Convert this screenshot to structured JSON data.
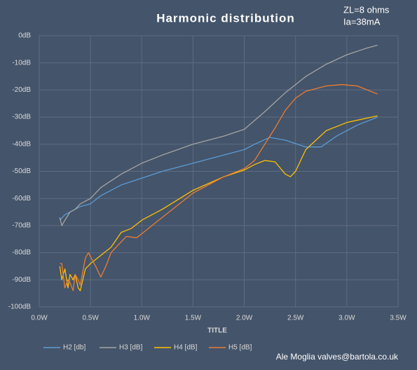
{
  "chart_data": {
    "type": "line",
    "title": "Harmonic distribution",
    "x_label": "TITLE",
    "annotations": [
      "ZL=8 ohms",
      "Ia=38mA",
      "Ale Moglia valves@bartola.co.uk"
    ],
    "xlim": [
      0,
      3.5
    ],
    "xticks": [
      {
        "value": 0,
        "label": "0.0W"
      },
      {
        "value": 0.5,
        "label": "0.5W"
      },
      {
        "value": 1,
        "label": "1.0W"
      },
      {
        "value": 1.5,
        "label": "1.5W"
      },
      {
        "value": 2,
        "label": "2.0W"
      },
      {
        "value": 2.5,
        "label": "2.5W"
      },
      {
        "value": 3,
        "label": "3.0W"
      },
      {
        "value": 3.5,
        "label": "3.5W"
      }
    ],
    "ylim": [
      -100,
      0
    ],
    "yticks": [
      {
        "value": 0,
        "label": "0dB"
      },
      {
        "value": -10,
        "label": "-10dB"
      },
      {
        "value": -20,
        "label": "-20dB"
      },
      {
        "value": -30,
        "label": "-30dB"
      },
      {
        "value": -40,
        "label": "-40dB"
      },
      {
        "value": -50,
        "label": "-50dB"
      },
      {
        "value": -60,
        "label": "-60dB"
      },
      {
        "value": -70,
        "label": "-70dB"
      },
      {
        "value": -80,
        "label": "-80dB"
      },
      {
        "value": -90,
        "label": "-90dB"
      },
      {
        "value": -100,
        "label": "-100dB"
      }
    ],
    "grid": true,
    "legend": "bottom",
    "series": [
      {
        "name": "H2 [db]",
        "color": "#5b9bd5",
        "x": [
          0.2,
          0.25,
          0.3,
          0.4,
          0.5,
          0.6,
          0.8,
          1.0,
          1.2,
          1.5,
          1.8,
          2.0,
          2.1,
          2.25,
          2.4,
          2.6,
          2.75,
          2.9,
          3.1,
          3.3
        ],
        "values": [
          -68,
          -66,
          -65,
          -63,
          -62,
          -59,
          -55,
          -52.5,
          -50,
          -47,
          -44,
          -42,
          -40,
          -37.5,
          -38.5,
          -41,
          -41,
          -37,
          -33,
          -30
        ]
      },
      {
        "name": "H3 [dB]",
        "color": "#a5a5a5",
        "x": [
          0.2,
          0.22,
          0.25,
          0.3,
          0.35,
          0.4,
          0.5,
          0.6,
          0.8,
          1.0,
          1.2,
          1.5,
          1.8,
          2.0,
          2.2,
          2.4,
          2.6,
          2.8,
          3.0,
          3.2,
          3.3
        ],
        "values": [
          -67,
          -70,
          -68,
          -65,
          -64,
          -62,
          -60,
          -56,
          -51,
          -47,
          -44,
          -40,
          -37,
          -34.5,
          -28,
          -21,
          -15,
          -10.5,
          -7,
          -4.5,
          -3.5
        ]
      },
      {
        "name": "H4 [dB]",
        "color": "#ffc000",
        "x": [
          0.2,
          0.22,
          0.25,
          0.28,
          0.3,
          0.33,
          0.35,
          0.38,
          0.4,
          0.45,
          0.5,
          0.6,
          0.7,
          0.8,
          0.9,
          1.0,
          1.2,
          1.5,
          1.8,
          2.0,
          2.1,
          2.2,
          2.3,
          2.4,
          2.45,
          2.5,
          2.6,
          2.8,
          3.0,
          3.3
        ],
        "values": [
          -85,
          -90,
          -86,
          -93,
          -88,
          -90,
          -88,
          -93,
          -94,
          -86,
          -84,
          -81,
          -78,
          -72.5,
          -71,
          -68,
          -64,
          -57,
          -52,
          -49.5,
          -47.5,
          -46,
          -46.5,
          -51,
          -52,
          -50,
          -42,
          -35,
          -32,
          -29.5
        ]
      },
      {
        "name": "H5 [dB]",
        "color": "#ed7d31",
        "x": [
          0.2,
          0.22,
          0.25,
          0.28,
          0.3,
          0.33,
          0.35,
          0.38,
          0.4,
          0.45,
          0.48,
          0.55,
          0.6,
          0.65,
          0.7,
          0.8,
          0.85,
          0.95,
          1.0,
          1.2,
          1.5,
          1.8,
          2.0,
          2.1,
          2.2,
          2.3,
          2.4,
          2.5,
          2.6,
          2.8,
          2.95,
          3.1,
          3.3
        ],
        "values": [
          -84,
          -84,
          -93,
          -90,
          -91,
          -94,
          -88,
          -90,
          -92,
          -82,
          -80,
          -85,
          -89,
          -85,
          -80,
          -76,
          -74,
          -74.5,
          -73,
          -67,
          -58,
          -52,
          -49,
          -46,
          -40,
          -34,
          -27.5,
          -23,
          -20.5,
          -18.5,
          -18,
          -18.5,
          -21.5
        ]
      }
    ]
  }
}
